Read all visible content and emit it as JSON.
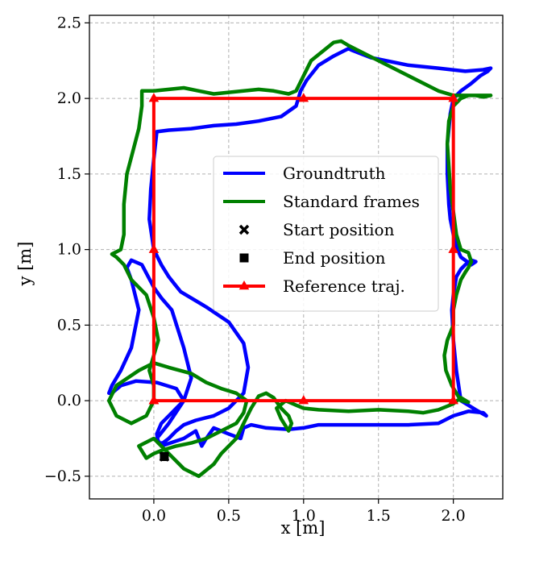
{
  "chart_data": {
    "type": "line",
    "title": "",
    "xlabel": "x [m]",
    "ylabel": "y [m]",
    "xlim": [
      -0.43,
      2.33
    ],
    "ylim": [
      -0.65,
      2.55
    ],
    "xticks": [
      0.0,
      0.5,
      1.0,
      1.5,
      2.0
    ],
    "xtick_labels": [
      "0.0",
      "0.5",
      "1.0",
      "1.5",
      "2.0"
    ],
    "yticks": [
      -0.5,
      0.0,
      0.5,
      1.0,
      1.5,
      2.0,
      2.5
    ],
    "ytick_labels": [
      "−0.5",
      "0.0",
      "0.5",
      "1.0",
      "1.5",
      "2.0",
      "2.5"
    ],
    "grid": true,
    "legend_position": "center",
    "series": [
      {
        "name": "Groundtruth",
        "color": "#0000ff",
        "style": "line",
        "x": [
          2.25,
          2.2,
          2.08,
          1.9,
          1.7,
          1.45,
          1.32,
          1.3,
          1.28,
          1.2,
          1.1,
          1.02,
          0.98,
          0.95,
          0.85,
          0.7,
          0.55,
          0.4,
          0.25,
          0.1,
          0.02,
          0.0,
          -0.02,
          -0.03,
          0.0,
          0.05,
          0.1,
          0.14,
          0.18,
          0.35,
          0.5,
          0.6,
          0.63,
          0.6,
          0.5,
          0.4,
          0.28,
          0.2,
          0.15,
          0.1,
          0.06,
          0.03,
          0.02,
          0.05,
          0.1,
          0.15,
          0.2,
          0.15,
          0.02,
          -0.12,
          -0.22,
          -0.28,
          -0.3,
          -0.28,
          -0.22,
          -0.15,
          -0.1,
          -0.15,
          -0.18,
          -0.15,
          -0.08,
          0.0,
          0.05,
          0.12,
          0.2,
          0.25,
          0.2,
          0.1,
          0.02,
          0.05,
          0.2,
          0.28,
          0.3,
          0.32,
          0.35,
          0.4,
          0.5,
          0.58,
          0.6,
          0.65,
          0.75,
          0.9,
          1.0,
          1.1,
          1.3,
          1.5,
          1.7,
          1.9,
          2.0,
          2.1,
          2.2,
          2.22,
          2.15,
          2.05,
          2.02,
          2.0,
          1.99,
          2.0,
          2.02,
          2.05,
          2.08,
          2.12,
          2.15,
          2.12,
          2.05,
          2.02,
          2.0,
          1.98,
          1.97,
          1.96,
          1.96,
          1.97,
          1.98,
          2.0,
          2.05,
          2.12,
          2.18,
          2.23,
          2.25
        ],
        "y": [
          2.2,
          2.19,
          2.18,
          2.2,
          2.22,
          2.27,
          2.32,
          2.33,
          2.32,
          2.28,
          2.22,
          2.12,
          2.05,
          1.95,
          1.88,
          1.85,
          1.83,
          1.82,
          1.8,
          1.79,
          1.78,
          1.6,
          1.4,
          1.2,
          1.0,
          0.9,
          0.82,
          0.77,
          0.72,
          0.62,
          0.52,
          0.38,
          0.22,
          0.05,
          -0.05,
          -0.1,
          -0.13,
          -0.16,
          -0.2,
          -0.25,
          -0.28,
          -0.28,
          -0.22,
          -0.15,
          -0.1,
          -0.05,
          0.0,
          0.08,
          0.12,
          0.13,
          0.1,
          0.05,
          0.05,
          0.1,
          0.2,
          0.35,
          0.6,
          0.8,
          0.88,
          0.93,
          0.9,
          0.75,
          0.68,
          0.6,
          0.35,
          0.15,
          0.0,
          -0.15,
          -0.25,
          -0.3,
          -0.25,
          -0.2,
          -0.25,
          -0.3,
          -0.25,
          -0.18,
          -0.22,
          -0.25,
          -0.18,
          -0.16,
          -0.18,
          -0.19,
          -0.18,
          -0.16,
          -0.16,
          -0.16,
          -0.16,
          -0.15,
          -0.1,
          -0.07,
          -0.08,
          -0.1,
          -0.06,
          0.0,
          0.2,
          0.4,
          0.6,
          0.7,
          0.82,
          0.87,
          0.9,
          0.93,
          0.92,
          0.9,
          0.95,
          1.02,
          1.1,
          1.2,
          1.3,
          1.5,
          1.7,
          1.8,
          1.9,
          2.0,
          2.05,
          2.1,
          2.15,
          2.18,
          2.2
        ]
      },
      {
        "name": "Standard frames",
        "color": "#008000",
        "style": "line",
        "x": [
          2.25,
          2.1,
          2.0,
          1.9,
          1.8,
          1.7,
          1.6,
          1.5,
          1.4,
          1.3,
          1.25,
          1.2,
          1.15,
          1.05,
          1.0,
          0.95,
          0.9,
          0.8,
          0.7,
          0.6,
          0.5,
          0.4,
          0.3,
          0.2,
          0.1,
          0.0,
          -0.08,
          -0.08,
          -0.1,
          -0.14,
          -0.18,
          -0.2,
          -0.2,
          -0.22,
          -0.26,
          -0.28,
          -0.25,
          -0.2,
          -0.15,
          -0.05,
          0.0,
          0.03,
          0.0,
          -0.03,
          0.0,
          0.0,
          -0.05,
          -0.15,
          -0.25,
          -0.3,
          -0.25,
          -0.1,
          0.0,
          0.1,
          0.25,
          0.35,
          0.45,
          0.55,
          0.62,
          0.6,
          0.55,
          0.45,
          0.35,
          0.25,
          0.15,
          0.05,
          0.0,
          -0.05,
          -0.1,
          0.0,
          0.1,
          0.2,
          0.3,
          0.4,
          0.45,
          0.5,
          0.55,
          0.6,
          0.65,
          0.7,
          0.75,
          0.8,
          0.85,
          0.9,
          0.92,
          0.9,
          0.85,
          0.82,
          0.88,
          0.95,
          1.0,
          1.1,
          1.3,
          1.5,
          1.7,
          1.8,
          1.9,
          2.0,
          2.05,
          2.1,
          2.05,
          1.99,
          1.95,
          1.94,
          1.96,
          2.0,
          2.0,
          2.02,
          2.05,
          2.08,
          2.1,
          2.12,
          2.1,
          2.05,
          2.02,
          2.0,
          1.98,
          1.97,
          1.96,
          1.97,
          2.0,
          2.05,
          2.1,
          2.15,
          2.2,
          2.25
        ],
        "y": [
          2.02,
          2.02,
          2.02,
          2.05,
          2.1,
          2.15,
          2.2,
          2.25,
          2.3,
          2.35,
          2.38,
          2.37,
          2.33,
          2.25,
          2.15,
          2.05,
          2.03,
          2.05,
          2.06,
          2.05,
          2.04,
          2.03,
          2.05,
          2.07,
          2.06,
          2.05,
          2.05,
          1.95,
          1.8,
          1.65,
          1.5,
          1.3,
          1.1,
          1.0,
          0.98,
          0.97,
          0.95,
          0.9,
          0.8,
          0.7,
          0.55,
          0.4,
          0.3,
          0.2,
          0.1,
          0.0,
          -0.1,
          -0.15,
          -0.1,
          0.0,
          0.1,
          0.2,
          0.25,
          0.22,
          0.18,
          0.12,
          0.08,
          0.05,
          0.0,
          -0.08,
          -0.15,
          -0.2,
          -0.25,
          -0.28,
          -0.3,
          -0.33,
          -0.35,
          -0.38,
          -0.3,
          -0.25,
          -0.35,
          -0.45,
          -0.5,
          -0.42,
          -0.35,
          -0.3,
          -0.25,
          -0.15,
          -0.05,
          0.03,
          0.05,
          0.02,
          -0.05,
          -0.1,
          -0.15,
          -0.2,
          -0.12,
          -0.05,
          0.0,
          -0.03,
          -0.05,
          -0.06,
          -0.07,
          -0.06,
          -0.07,
          -0.08,
          -0.06,
          -0.02,
          0.02,
          -0.01,
          0.0,
          0.1,
          0.2,
          0.3,
          0.4,
          0.5,
          0.6,
          0.7,
          0.8,
          0.85,
          0.88,
          0.92,
          0.98,
          1.0,
          1.1,
          1.25,
          1.4,
          1.55,
          1.7,
          1.85,
          1.95,
          2.0,
          2.02,
          2.02,
          2.01,
          2.02
        ]
      },
      {
        "name": "Reference traj.",
        "color": "#ff0000",
        "style": "line-triangle-markers",
        "x": [
          0.0,
          1.0,
          2.0,
          2.0,
          2.0,
          1.0,
          0.0,
          0.0,
          0.0
        ],
        "y": [
          0.0,
          0.0,
          0.0,
          1.0,
          2.0,
          2.0,
          2.0,
          1.0,
          0.0
        ]
      }
    ],
    "points": [
      {
        "name": "Start position",
        "marker": "x",
        "color": "#000000",
        "x": 0.07,
        "y": -0.37
      },
      {
        "name": "End position",
        "marker": "square",
        "color": "#000000",
        "x": 0.07,
        "y": -0.37
      }
    ],
    "legend": [
      {
        "label": "Groundtruth",
        "kind": "line",
        "color": "#0000ff"
      },
      {
        "label": "Standard frames",
        "kind": "line",
        "color": "#008000"
      },
      {
        "label": "Start position",
        "kind": "x",
        "color": "#000000"
      },
      {
        "label": "End position",
        "kind": "square",
        "color": "#000000"
      },
      {
        "label": "Reference traj.",
        "kind": "line-triangle",
        "color": "#ff0000"
      }
    ]
  }
}
